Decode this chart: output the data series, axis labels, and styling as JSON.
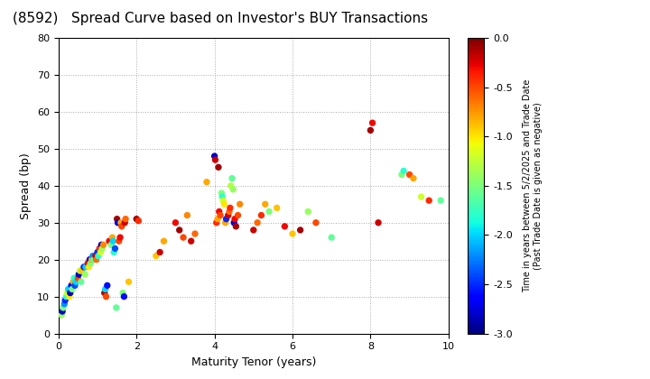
{
  "title": "(8592)   Spread Curve based on Investor's BUY Transactions",
  "xlabel": "Maturity Tenor (years)",
  "ylabel": "Spread (bp)",
  "colorbar_label_line1": "Time in years between 5/2/2025 and Trade Date",
  "colorbar_label_line2": "(Past Trade Date is given as negative)",
  "xlim": [
    0,
    10
  ],
  "ylim": [
    0,
    80
  ],
  "xticks": [
    0,
    2,
    4,
    6,
    8,
    10
  ],
  "yticks": [
    0,
    10,
    20,
    30,
    40,
    50,
    60,
    70,
    80
  ],
  "vmin": -3.0,
  "vmax": 0.0,
  "cbar_ticks": [
    0.0,
    -0.5,
    -1.0,
    -1.5,
    -2.0,
    -2.5,
    -3.0
  ],
  "background_color": "#ffffff",
  "grid_color": "#aaaaaa",
  "points": [
    [
      0.08,
      5.0,
      -1.4
    ],
    [
      0.1,
      6.0,
      -2.8
    ],
    [
      0.12,
      7.0,
      -1.5
    ],
    [
      0.15,
      8.0,
      -2.2
    ],
    [
      0.17,
      9.0,
      -2.5
    ],
    [
      0.2,
      10.0,
      -1.8
    ],
    [
      0.22,
      11.0,
      -1.2
    ],
    [
      0.25,
      12.0,
      -2.0
    ],
    [
      0.28,
      10.0,
      -1.0
    ],
    [
      0.3,
      11.0,
      -2.8
    ],
    [
      0.33,
      13.0,
      -2.6
    ],
    [
      0.35,
      12.0,
      -1.5
    ],
    [
      0.38,
      14.0,
      -0.8
    ],
    [
      0.4,
      15.0,
      -1.8
    ],
    [
      0.42,
      13.0,
      -2.4
    ],
    [
      0.45,
      14.0,
      -2.0
    ],
    [
      0.5,
      15.0,
      -0.5
    ],
    [
      0.52,
      16.0,
      -2.8
    ],
    [
      0.55,
      17.0,
      -1.2
    ],
    [
      0.58,
      14.0,
      -1.6
    ],
    [
      0.6,
      17.0,
      -0.9
    ],
    [
      0.65,
      18.0,
      -2.5
    ],
    [
      0.68,
      16.0,
      -1.4
    ],
    [
      0.7,
      18.0,
      -2.0
    ],
    [
      0.75,
      19.0,
      -0.3
    ],
    [
      0.78,
      18.0,
      -1.0
    ],
    [
      0.8,
      20.0,
      -2.8
    ],
    [
      0.82,
      19.0,
      -1.5
    ],
    [
      0.85,
      20.0,
      -0.8
    ],
    [
      0.88,
      21.0,
      -2.2
    ],
    [
      0.9,
      20.0,
      -1.6
    ],
    [
      0.95,
      21.0,
      -0.2
    ],
    [
      0.97,
      20.0,
      -0.6
    ],
    [
      1.0,
      22.0,
      -2.5
    ],
    [
      1.02,
      21.0,
      -1.8
    ],
    [
      1.05,
      23.0,
      -0.4
    ],
    [
      1.08,
      22.0,
      -1.2
    ],
    [
      1.1,
      24.0,
      -2.8
    ],
    [
      1.12,
      23.0,
      -1.4
    ],
    [
      1.15,
      24.0,
      -0.7
    ],
    [
      1.18,
      11.0,
      -0.1
    ],
    [
      1.2,
      12.0,
      -2.0
    ],
    [
      1.22,
      10.0,
      -0.5
    ],
    [
      1.25,
      13.0,
      -2.6
    ],
    [
      1.3,
      25.0,
      -0.3
    ],
    [
      1.35,
      24.0,
      -1.5
    ],
    [
      1.38,
      26.0,
      -0.8
    ],
    [
      1.4,
      25.0,
      -2.0
    ],
    [
      1.42,
      22.0,
      -1.8
    ],
    [
      1.45,
      23.0,
      -2.4
    ],
    [
      1.48,
      7.0,
      -1.6
    ],
    [
      1.5,
      31.0,
      -0.1
    ],
    [
      1.52,
      30.0,
      -2.8
    ],
    [
      1.55,
      25.0,
      -0.5
    ],
    [
      1.58,
      26.0,
      -0.3
    ],
    [
      1.6,
      30.0,
      -0.8
    ],
    [
      1.62,
      29.0,
      -0.5
    ],
    [
      1.65,
      11.0,
      -1.5
    ],
    [
      1.68,
      10.0,
      -2.6
    ],
    [
      1.7,
      30.0,
      -0.2
    ],
    [
      1.72,
      31.0,
      -0.6
    ],
    [
      1.8,
      14.0,
      -0.9
    ],
    [
      2.0,
      31.0,
      -0.1
    ],
    [
      2.05,
      30.5,
      -0.4
    ],
    [
      2.5,
      21.0,
      -0.9
    ],
    [
      2.6,
      22.0,
      -0.2
    ],
    [
      2.7,
      25.0,
      -0.8
    ],
    [
      3.0,
      30.0,
      -0.3
    ],
    [
      3.1,
      28.0,
      -0.1
    ],
    [
      3.2,
      26.0,
      -0.5
    ],
    [
      3.3,
      32.0,
      -0.7
    ],
    [
      3.4,
      25.0,
      -0.2
    ],
    [
      3.5,
      27.0,
      -0.6
    ],
    [
      3.8,
      41.0,
      -0.8
    ],
    [
      4.0,
      48.0,
      -2.8
    ],
    [
      4.02,
      47.0,
      -0.2
    ],
    [
      4.05,
      30.0,
      -0.4
    ],
    [
      4.08,
      31.0,
      -0.8
    ],
    [
      4.1,
      45.0,
      -0.1
    ],
    [
      4.12,
      33.0,
      -0.3
    ],
    [
      4.15,
      32.0,
      -0.5
    ],
    [
      4.18,
      38.0,
      -1.5
    ],
    [
      4.2,
      37.0,
      -1.8
    ],
    [
      4.22,
      36.0,
      -1.2
    ],
    [
      4.25,
      35.0,
      -1.0
    ],
    [
      4.28,
      30.0,
      -0.8
    ],
    [
      4.3,
      31.0,
      -2.5
    ],
    [
      4.35,
      32.0,
      -0.2
    ],
    [
      4.38,
      33.0,
      -0.6
    ],
    [
      4.4,
      34.0,
      -0.4
    ],
    [
      4.42,
      40.0,
      -1.3
    ],
    [
      4.45,
      42.0,
      -1.6
    ],
    [
      4.48,
      39.0,
      -1.4
    ],
    [
      4.5,
      30.0,
      -2.8
    ],
    [
      4.52,
      31.0,
      -0.3
    ],
    [
      4.55,
      29.0,
      -0.1
    ],
    [
      4.6,
      32.0,
      -0.5
    ],
    [
      4.65,
      35.0,
      -0.7
    ],
    [
      5.0,
      28.0,
      -0.2
    ],
    [
      5.1,
      30.0,
      -0.6
    ],
    [
      5.2,
      32.0,
      -0.4
    ],
    [
      5.3,
      35.0,
      -0.8
    ],
    [
      5.4,
      33.0,
      -1.5
    ],
    [
      5.6,
      34.0,
      -0.9
    ],
    [
      5.8,
      29.0,
      -0.3
    ],
    [
      6.0,
      27.0,
      -0.9
    ],
    [
      6.2,
      28.0,
      -0.1
    ],
    [
      6.4,
      33.0,
      -1.4
    ],
    [
      6.6,
      30.0,
      -0.5
    ],
    [
      7.0,
      26.0,
      -1.6
    ],
    [
      8.0,
      55.0,
      -0.1
    ],
    [
      8.05,
      57.0,
      -0.3
    ],
    [
      8.2,
      30.0,
      -0.2
    ],
    [
      8.8,
      43.0,
      -1.5
    ],
    [
      8.85,
      44.0,
      -1.8
    ],
    [
      9.0,
      43.0,
      -0.5
    ],
    [
      9.1,
      42.0,
      -0.8
    ],
    [
      9.3,
      37.0,
      -1.2
    ],
    [
      9.5,
      36.0,
      -0.4
    ],
    [
      9.8,
      36.0,
      -1.6
    ]
  ]
}
